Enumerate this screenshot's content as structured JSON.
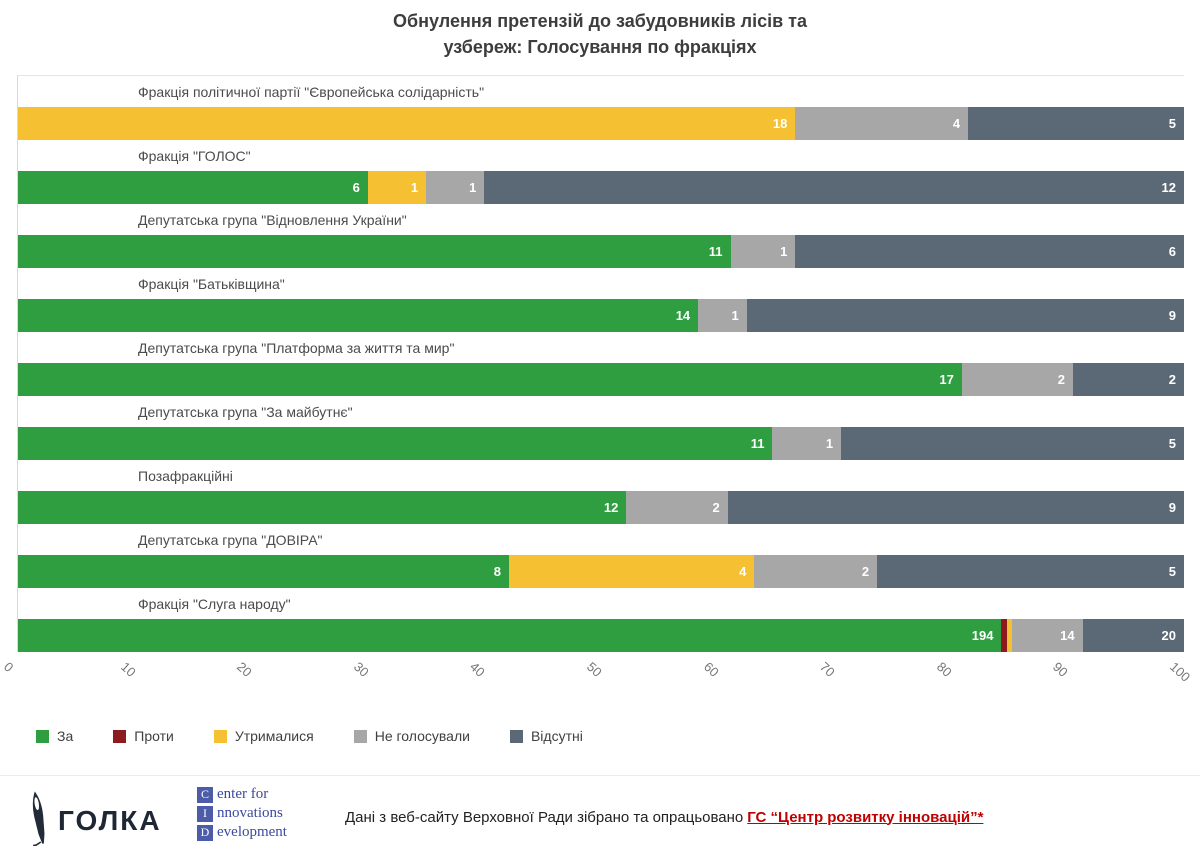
{
  "title": {
    "line1": "Обнулення претензій до забудовників лісів та",
    "line2": "узбереж: Голосування по фракціях"
  },
  "chart_data": {
    "type": "bar",
    "orientation": "horizontal",
    "stacked": true,
    "stack_mode": "percent_of_faction_total",
    "x_axis": {
      "min": 0,
      "max": 100,
      "tick_step": 10,
      "tick_labels": [
        "0",
        "10",
        "20",
        "30",
        "40",
        "50",
        "60",
        "70",
        "80",
        "90",
        "100"
      ]
    },
    "series": [
      {
        "name": "За",
        "color": "#2f9e41"
      },
      {
        "name": "Проти",
        "color": "#8c1a1f"
      },
      {
        "name": "Утрималися",
        "color": "#f5c132"
      },
      {
        "name": "Не голосували",
        "color": "#a7a7a7"
      },
      {
        "name": "Відсутні",
        "color": "#5b6876"
      }
    ],
    "rows": [
      {
        "label": "Фракція політичної партії \"Європейська солідарність\"",
        "values": [
          0,
          0,
          18,
          4,
          5
        ]
      },
      {
        "label": "Фракція \"ГОЛОС\"",
        "values": [
          6,
          0,
          1,
          1,
          12
        ]
      },
      {
        "label": "Депутатська група \"Відновлення України\"",
        "values": [
          11,
          0,
          0,
          1,
          6
        ]
      },
      {
        "label": "Фракція \"Батьківщина\"",
        "values": [
          14,
          0,
          0,
          1,
          9
        ]
      },
      {
        "label": "Депутатська група \"Платформа за життя та мир\"",
        "values": [
          17,
          0,
          0,
          2,
          2
        ]
      },
      {
        "label": "Депутатська група \"За майбутнє\"",
        "values": [
          11,
          0,
          0,
          1,
          5
        ]
      },
      {
        "label": "Позафракційні",
        "values": [
          12,
          0,
          0,
          2,
          9
        ]
      },
      {
        "label": "Депутатська група \"ДОВІРА\"",
        "values": [
          8,
          0,
          4,
          2,
          5
        ]
      },
      {
        "label": "Фракція \"Слуга народу\"",
        "values": [
          194,
          1,
          1,
          14,
          20
        ]
      }
    ]
  },
  "footer": {
    "golka_text": "ГОЛКА",
    "cid": {
      "lines": [
        {
          "letter": "C",
          "rest": "enter for"
        },
        {
          "letter": "I",
          "rest": "nnovations"
        },
        {
          "letter": "D",
          "rest": "evelopment"
        }
      ]
    },
    "attribution_plain": "Дані з веб-сайту Верховної Ради зібрано та опрацьовано",
    "attribution_link": "ГС “Центр розвитку  інновацій”*"
  }
}
